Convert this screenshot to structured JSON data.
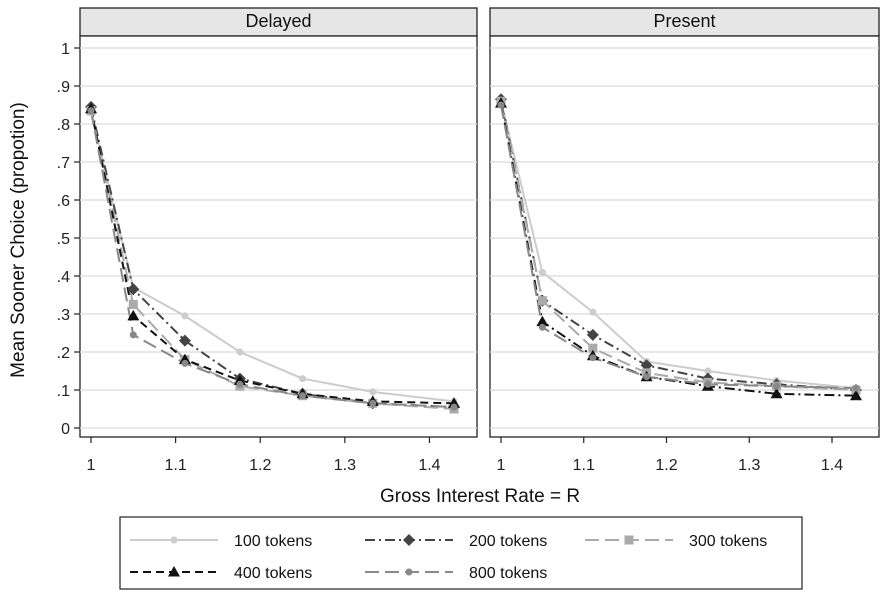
{
  "chart_data": {
    "type": "line",
    "ylabel": "Mean Sooner Choice (propotion)",
    "xlabel": "Gross Interest Rate = R",
    "xlim": [
      1,
      1.45
    ],
    "ylim": [
      0,
      1
    ],
    "xticks": [
      {
        "value": 1,
        "label": "1"
      },
      {
        "value": 1.1,
        "label": "1.1"
      },
      {
        "value": 1.2,
        "label": "1.2"
      },
      {
        "value": 1.3,
        "label": "1.3"
      },
      {
        "value": 1.4,
        "label": "1.4"
      }
    ],
    "yticks": [
      {
        "value": 0,
        "label": "0"
      },
      {
        "value": 0.1,
        "label": ".1"
      },
      {
        "value": 0.2,
        "label": ".2"
      },
      {
        "value": 0.3,
        "label": ".3"
      },
      {
        "value": 0.4,
        "label": ".4"
      },
      {
        "value": 0.5,
        "label": ".5"
      },
      {
        "value": 0.6,
        "label": ".6"
      },
      {
        "value": 0.7,
        "label": ".7"
      },
      {
        "value": 0.8,
        "label": ".8"
      },
      {
        "value": 0.9,
        "label": ".9"
      },
      {
        "value": 1,
        "label": "1"
      }
    ],
    "grid": "horizontal",
    "legend_position": "bottom",
    "x": [
      1,
      1.05,
      1.111,
      1.176,
      1.25,
      1.333,
      1.429
    ],
    "panels": [
      {
        "title": "Delayed",
        "series": [
          {
            "name": "100 tokens",
            "color": "#cccccc",
            "dash": "solid",
            "marker": "circle",
            "values": [
              0.83,
              0.37,
              0.295,
              0.2,
              0.13,
              0.095,
              0.07
            ]
          },
          {
            "name": "200 tokens",
            "color": "#444444",
            "dash": "dashdot",
            "marker": "diamond",
            "values": [
              0.845,
              0.365,
              0.23,
              0.13,
              0.09,
              0.065,
              0.055
            ]
          },
          {
            "name": "300 tokens",
            "color": "#aaaaaa",
            "dash": "longdash",
            "marker": "square",
            "values": [
              0.835,
              0.325,
              0.18,
              0.11,
              0.085,
              0.065,
              0.05
            ]
          },
          {
            "name": "400 tokens",
            "color": "#111111",
            "dash": "dash",
            "marker": "triangle",
            "values": [
              0.84,
              0.295,
              0.18,
              0.125,
              0.09,
              0.07,
              0.065
            ]
          },
          {
            "name": "800 tokens",
            "color": "#888888",
            "dash": "longdash",
            "marker": "circle",
            "values": [
              0.835,
              0.245,
              0.17,
              0.115,
              0.085,
              0.065,
              0.055
            ]
          }
        ]
      },
      {
        "title": "Present",
        "series": [
          {
            "name": "100 tokens",
            "color": "#cccccc",
            "dash": "solid",
            "marker": "circle",
            "values": [
              0.86,
              0.41,
              0.305,
              0.175,
              0.15,
              0.125,
              0.105
            ]
          },
          {
            "name": "200 tokens",
            "color": "#444444",
            "dash": "dashdot",
            "marker": "diamond",
            "values": [
              0.865,
              0.335,
              0.245,
              0.165,
              0.13,
              0.115,
              0.1
            ]
          },
          {
            "name": "300 tokens",
            "color": "#aaaaaa",
            "dash": "longdash",
            "marker": "square",
            "values": [
              0.86,
              0.335,
              0.21,
              0.145,
              0.12,
              0.11,
              0.1
            ]
          },
          {
            "name": "400 tokens",
            "color": "#111111",
            "dash": "dashdot",
            "marker": "triangle",
            "values": [
              0.855,
              0.28,
              0.19,
              0.135,
              0.11,
              0.09,
              0.085
            ]
          },
          {
            "name": "800 tokens",
            "color": "#888888",
            "dash": "longdash",
            "marker": "circle",
            "values": [
              0.85,
              0.265,
              0.185,
              0.135,
              0.115,
              0.11,
              0.105
            ]
          }
        ]
      }
    ]
  }
}
